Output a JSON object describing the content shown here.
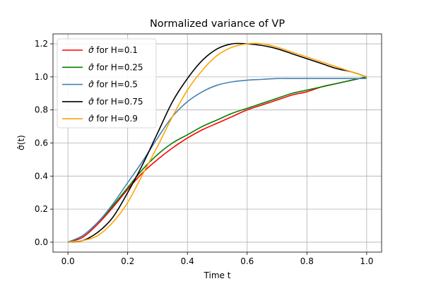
{
  "chart_data": {
    "type": "line",
    "title": "Normalized variance of VP",
    "xlabel": "Time t",
    "ylabel": "σ̂(t)",
    "xlim": [
      -0.05,
      1.05
    ],
    "ylim": [
      -0.06,
      1.26
    ],
    "grid": true,
    "legend_position": "upper-left",
    "x_ticks": [
      0.0,
      0.2,
      0.4,
      0.6,
      0.8,
      1.0
    ],
    "x_tick_labels": [
      "0.0",
      "0.2",
      "0.4",
      "0.6",
      "0.8",
      "1.0"
    ],
    "y_ticks": [
      0.0,
      0.2,
      0.4,
      0.6,
      0.8,
      1.0,
      1.2
    ],
    "y_tick_labels": [
      "0.0",
      "0.2",
      "0.4",
      "0.6",
      "0.8",
      "1.0",
      "1.2"
    ],
    "x": [
      0.0,
      0.05,
      0.1,
      0.15,
      0.2,
      0.25,
      0.3,
      0.35,
      0.4,
      0.45,
      0.5,
      0.55,
      0.6,
      0.65,
      0.7,
      0.75,
      0.8,
      0.85,
      0.9,
      0.95,
      1.0
    ],
    "series": [
      {
        "name": "σ̂ for H=0.1",
        "symbol": "σ̂",
        "suffix": " for H=0.1",
        "color": "#ff0000",
        "values": [
          0.0,
          0.03,
          0.11,
          0.21,
          0.32,
          0.42,
          0.5,
          0.57,
          0.63,
          0.68,
          0.72,
          0.76,
          0.8,
          0.83,
          0.86,
          0.89,
          0.91,
          0.94,
          0.96,
          0.98,
          1.0
        ]
      },
      {
        "name": "σ̂ for H=0.25",
        "symbol": "σ̂",
        "suffix": " for H=0.25",
        "color": "#008000",
        "values": [
          0.0,
          0.04,
          0.12,
          0.22,
          0.33,
          0.44,
          0.53,
          0.6,
          0.65,
          0.7,
          0.74,
          0.78,
          0.81,
          0.84,
          0.87,
          0.9,
          0.92,
          0.94,
          0.96,
          0.98,
          1.0
        ]
      },
      {
        "name": "σ̂ for H=0.5",
        "symbol": "σ̂",
        "suffix": " for H=0.5",
        "color": "#4682b4",
        "values": [
          0.0,
          0.04,
          0.12,
          0.23,
          0.36,
          0.49,
          0.63,
          0.76,
          0.85,
          0.91,
          0.95,
          0.97,
          0.98,
          0.985,
          0.99,
          0.99,
          0.99,
          0.99,
          0.99,
          0.99,
          0.99
        ]
      },
      {
        "name": "σ̂ for H=0.75",
        "symbol": "σ̂",
        "suffix": " for H=0.75",
        "color": "#000000",
        "values": [
          0.0,
          0.01,
          0.06,
          0.15,
          0.3,
          0.47,
          0.66,
          0.85,
          0.99,
          1.1,
          1.17,
          1.2,
          1.2,
          1.19,
          1.17,
          1.14,
          1.11,
          1.08,
          1.05,
          1.03,
          1.0
        ]
      },
      {
        "name": "σ̂ for H=0.9",
        "symbol": "σ̂",
        "suffix": " for H=0.9",
        "color": "#ffa500",
        "values": [
          0.0,
          0.01,
          0.04,
          0.12,
          0.24,
          0.41,
          0.58,
          0.76,
          0.92,
          1.04,
          1.13,
          1.18,
          1.2,
          1.2,
          1.18,
          1.15,
          1.12,
          1.09,
          1.06,
          1.03,
          1.0
        ]
      }
    ]
  }
}
